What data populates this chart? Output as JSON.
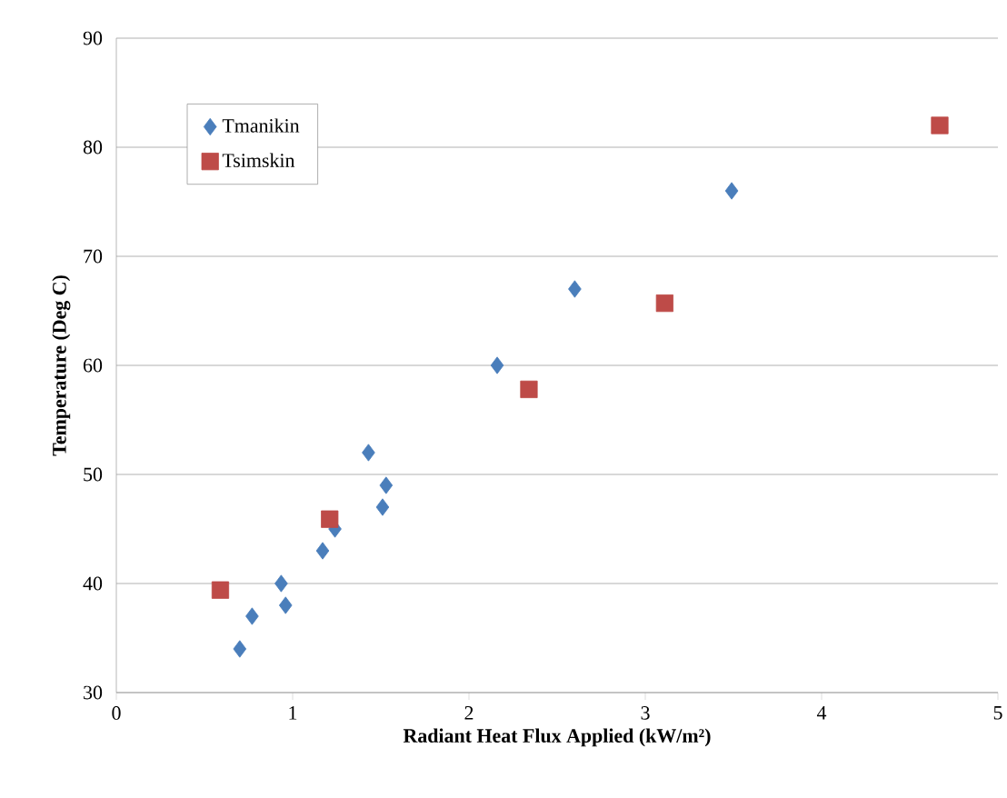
{
  "chart_data": {
    "type": "scatter",
    "xlabel": "Radiant Heat Flux Applied (kW/m²)",
    "ylabel": "Temperature (Deg C)",
    "xlim": [
      0,
      5
    ],
    "ylim": [
      30,
      90
    ],
    "xticks": [
      0,
      1,
      2,
      3,
      4,
      5
    ],
    "yticks": [
      30,
      40,
      50,
      60,
      70,
      80,
      90
    ],
    "grid": "y",
    "legend": "top left",
    "series": [
      {
        "name": "Tmanikin",
        "color": "#4a7ebb",
        "marker": "diamond",
        "x": [
          0.7,
          0.77,
          0.935,
          0.96,
          1.17,
          1.24,
          1.43,
          1.53,
          1.51,
          2.16,
          2.6,
          3.49
        ],
        "values": [
          34,
          37,
          40,
          38,
          43,
          45,
          52,
          49,
          47,
          60,
          67,
          76
        ]
      },
      {
        "name": "Tsimskin",
        "color": "#be4b48",
        "marker": "square",
        "x": [
          0.59,
          1.21,
          2.34,
          3.11,
          4.67
        ],
        "values": [
          39.4,
          45.9,
          57.8,
          65.7,
          82
        ]
      }
    ]
  }
}
